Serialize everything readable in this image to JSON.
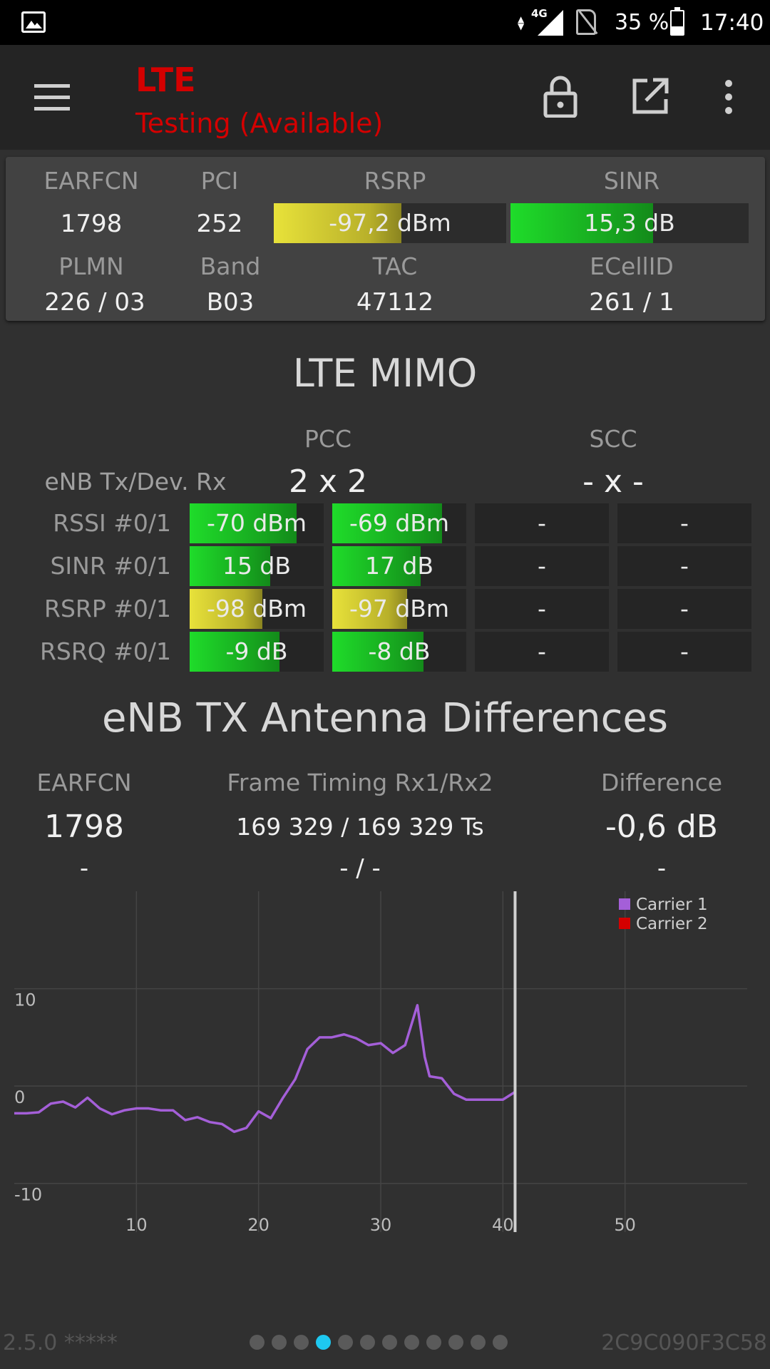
{
  "status_bar": {
    "network": "4G",
    "battery": "35 %",
    "time": "17:40",
    "battery_level": 0.35
  },
  "app_bar": {
    "title": "LTE",
    "subtitle": "Testing (Available)",
    "title_color": "#d40000"
  },
  "cell_info": {
    "earfcn_label": "EARFCN",
    "earfcn": "1798",
    "pci_label": "PCI",
    "pci": "252",
    "rsrp_label": "RSRP",
    "rsrp": "-97,2 dBm",
    "rsrp_level": 0.55,
    "sinr_label": "SINR",
    "sinr": "15,3 dB",
    "sinr_level": 0.6,
    "plmn_label": "PLMN",
    "plmn": "226 / 03",
    "band_label": "Band",
    "band": "B03",
    "tac_label": "TAC",
    "tac": "47112",
    "ecellid_label": "ECellID",
    "ecellid": "261 / 1"
  },
  "mimo": {
    "title": "LTE MIMO",
    "pcc_label": "PCC",
    "scc_label": "SCC",
    "tx_rx_label": "eNB Tx/Dev. Rx",
    "pcc_config": "2 x 2",
    "scc_config": "- x -",
    "rows": [
      {
        "label": "RSSI #0/1",
        "cells": [
          {
            "text": "-70 dBm",
            "level": 0.8,
            "color": "green"
          },
          {
            "text": "-69 dBm",
            "level": 0.82,
            "color": "green"
          },
          {
            "text": "-",
            "level": 0
          },
          {
            "text": "-",
            "level": 0
          }
        ]
      },
      {
        "label": "SINR #0/1",
        "cells": [
          {
            "text": "15 dB",
            "level": 0.6,
            "color": "green"
          },
          {
            "text": "17 dB",
            "level": 0.66,
            "color": "green"
          },
          {
            "text": "-",
            "level": 0
          },
          {
            "text": "-",
            "level": 0
          }
        ]
      },
      {
        "label": "RSRP #0/1",
        "cells": [
          {
            "text": "-98 dBm",
            "level": 0.54,
            "color": "yellow"
          },
          {
            "text": "-97 dBm",
            "level": 0.56,
            "color": "yellow"
          },
          {
            "text": "-",
            "level": 0
          },
          {
            "text": "-",
            "level": 0
          }
        ]
      },
      {
        "label": "RSRQ #0/1",
        "cells": [
          {
            "text": "-9 dB",
            "level": 0.67,
            "color": "green"
          },
          {
            "text": "-8 dB",
            "level": 0.68,
            "color": "green"
          },
          {
            "text": "-",
            "level": 0
          },
          {
            "text": "-",
            "level": 0
          }
        ]
      }
    ]
  },
  "antenna": {
    "title": "eNB TX Antenna Differences",
    "earfcn_label": "EARFCN",
    "frame_label": "Frame Timing Rx1/Rx2",
    "diff_label": "Difference",
    "earfcn_1": "1798",
    "frame_1": "169 329 / 169 329 Ts",
    "diff_1": "-0,6 dB",
    "earfcn_2": "-",
    "frame_2": "- / -",
    "diff_2": "-"
  },
  "chart_data": {
    "type": "line",
    "xlim": [
      0,
      60
    ],
    "ylim": [
      -15,
      20
    ],
    "xticks": [
      10,
      20,
      30,
      40,
      50
    ],
    "yticks": [
      10,
      0,
      -10
    ],
    "grid": true,
    "legend_position": "top-right",
    "cursor_x": 41,
    "series": [
      {
        "name": "Carrier 1",
        "color": "#a45fd8",
        "x": [
          0,
          1,
          2,
          3,
          4,
          5,
          6,
          7,
          8,
          9,
          10,
          11,
          12,
          13,
          14,
          15,
          16,
          17,
          18,
          19,
          20,
          21,
          22,
          23,
          24,
          25,
          26,
          27,
          28,
          29,
          30,
          31,
          32,
          33,
          33.6,
          34,
          35,
          36,
          37,
          38,
          39,
          40,
          41
        ],
        "y": [
          -2.8,
          -2.8,
          -2.7,
          -1.8,
          -1.6,
          -2.2,
          -1.2,
          -2.3,
          -2.9,
          -2.5,
          -2.3,
          -2.3,
          -2.5,
          -2.5,
          -3.5,
          -3.2,
          -3.7,
          -3.9,
          -4.7,
          -4.3,
          -2.6,
          -3.3,
          -1.2,
          0.7,
          3.8,
          5.0,
          5.0,
          5.3,
          4.9,
          4.2,
          4.4,
          3.4,
          4.2,
          8.3,
          3.0,
          1.0,
          0.8,
          -0.8,
          -1.4,
          -1.4,
          -1.4,
          -1.4,
          -0.6
        ]
      },
      {
        "name": "Carrier 2",
        "color": "#d40000",
        "x": [],
        "y": []
      }
    ]
  },
  "footer": {
    "version": "2.5.0 *****",
    "device_id": "2C9C090F3C58",
    "page_count": 12,
    "active_page": 4,
    "active_color": "#1ec8f0"
  }
}
